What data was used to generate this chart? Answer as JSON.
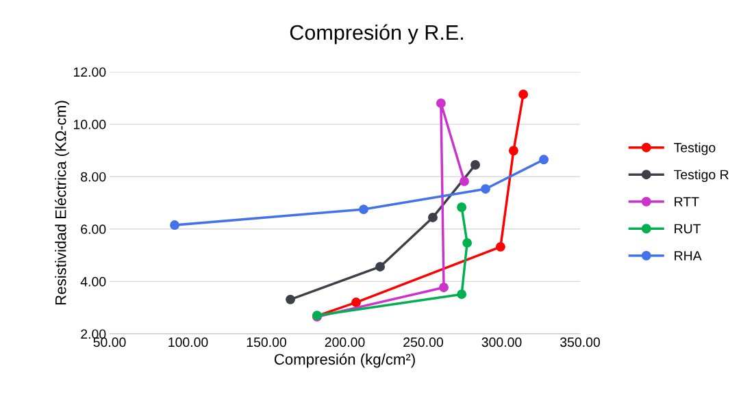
{
  "chart_data": {
    "type": "line",
    "title": "Compresión y R.E.",
    "xlabel": "Compresión (kg/cm²)",
    "ylabel": "Resistividad Eléctrica (KΩ-cm)",
    "xlim": [
      50,
      350
    ],
    "xticks": [
      {
        "value": 50,
        "label": "50.00"
      },
      {
        "value": 100,
        "label": "100.00"
      },
      {
        "value": 150,
        "label": "150.00"
      },
      {
        "value": 200,
        "label": "200.00"
      },
      {
        "value": 250,
        "label": "250.00"
      },
      {
        "value": 300,
        "label": "300.00"
      },
      {
        "value": 350,
        "label": "350.00"
      }
    ],
    "ylim": [
      2,
      12
    ],
    "yticks": [
      {
        "value": 2,
        "label": "2.00"
      },
      {
        "value": 4,
        "label": "4.00"
      },
      {
        "value": 6,
        "label": "6.00"
      },
      {
        "value": 8,
        "label": "8.00"
      },
      {
        "value": 10,
        "label": "10.00"
      },
      {
        "value": 12,
        "label": "12.00"
      }
    ],
    "grid": "y",
    "legend": "right",
    "marker": "circle",
    "line_style": "solid",
    "series": [
      {
        "name": "Testigo",
        "color": "#ff0000",
        "x": [
          182.3,
          207.2,
          299.3,
          307.6,
          313.8
        ],
        "values": [
          2.68,
          3.2,
          5.32,
          8.99,
          11.14
        ]
      },
      {
        "name": "Testigo R",
        "color": "#3f3f4a",
        "x": [
          165.3,
          222.5,
          256.1,
          283.2
        ],
        "values": [
          3.31,
          4.56,
          6.44,
          8.45
        ]
      },
      {
        "name": "RTT",
        "color": "#cc33cc",
        "x": [
          182.3,
          263.1,
          261.3,
          276.2
        ],
        "values": [
          2.65,
          3.77,
          10.8,
          7.82
        ]
      },
      {
        "name": "RUT",
        "color": "#00b050",
        "x": [
          182.3,
          274.5,
          278.0,
          274.5
        ],
        "values": [
          2.7,
          3.51,
          5.47,
          6.83
        ]
      },
      {
        "name": "RHA",
        "color": "#4472e8",
        "x": [
          91.5,
          212.0,
          289.7,
          326.9
        ],
        "values": [
          6.15,
          6.75,
          7.53,
          8.65
        ]
      }
    ]
  }
}
